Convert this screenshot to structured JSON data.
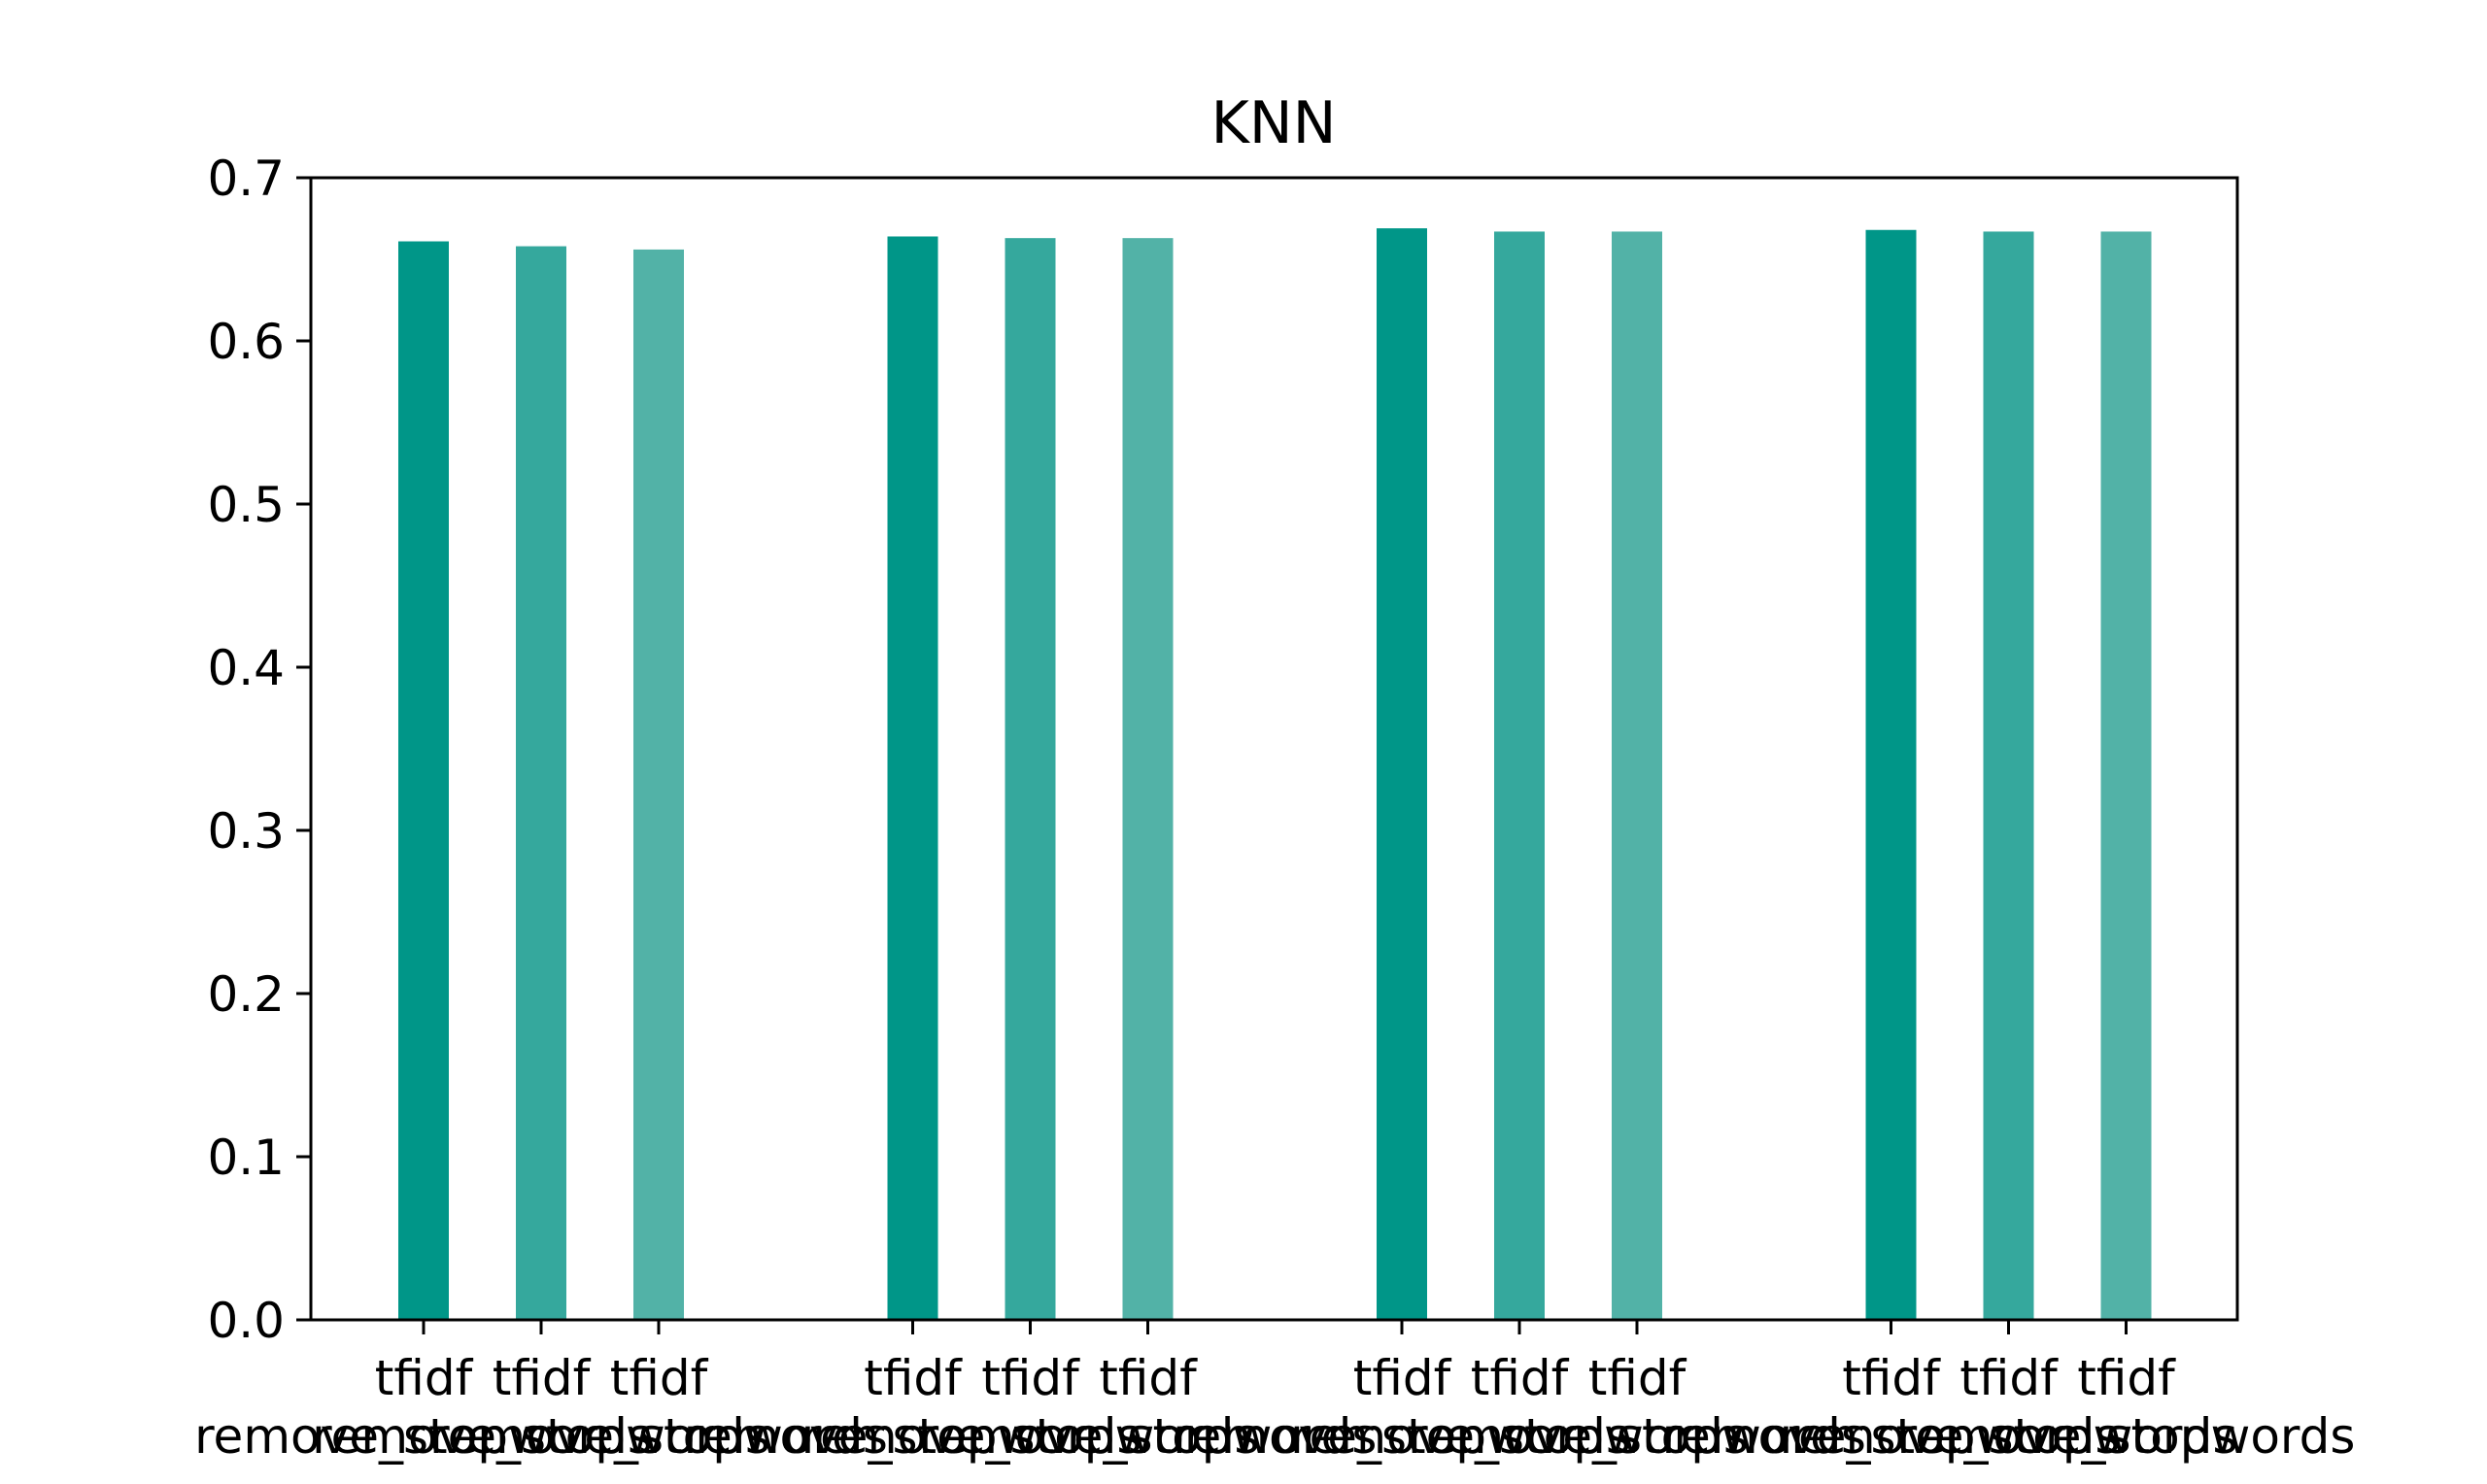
{
  "chart_data": {
    "type": "bar",
    "title": "KNN",
    "xlabel": "",
    "ylabel": "",
    "ylim": [
      0,
      0.7
    ],
    "yticks": [
      "0.0",
      "0.1",
      "0.2",
      "0.3",
      "0.4",
      "0.5",
      "0.6",
      "0.7"
    ],
    "grid": false,
    "legend": "none",
    "groups": [
      {
        "bars": [
          {
            "line1": "tfidf",
            "line2": "remove_stopwords",
            "value": 0.661,
            "color": "#009688"
          },
          {
            "line1": "tfidf",
            "line2": "remove_stopwords",
            "value": 0.658,
            "color": "#35a89d"
          },
          {
            "line1": "tfidf",
            "line2": "remove_stopwords",
            "value": 0.656,
            "color": "#52b2a7"
          }
        ]
      },
      {
        "bars": [
          {
            "line1": "tfidf",
            "line2": "remove_stopwords",
            "value": 0.664,
            "color": "#009688"
          },
          {
            "line1": "tfidf",
            "line2": "remove_stopwords",
            "value": 0.663,
            "color": "#35a89d"
          },
          {
            "line1": "tfidf",
            "line2": "remove_stopwords",
            "value": 0.663,
            "color": "#52b2a7"
          }
        ]
      },
      {
        "bars": [
          {
            "line1": "tfidf",
            "line2": "remove_stopwords",
            "value": 0.669,
            "color": "#009688"
          },
          {
            "line1": "tfidf",
            "line2": "remove_stopwords",
            "value": 0.667,
            "color": "#35a89d"
          },
          {
            "line1": "tfidf",
            "line2": "remove_stopwords",
            "value": 0.667,
            "color": "#52b2a7"
          }
        ]
      },
      {
        "bars": [
          {
            "line1": "tfidf",
            "line2": "remove_stopwords",
            "value": 0.668,
            "color": "#009688"
          },
          {
            "line1": "tfidf",
            "line2": "remove_stopwords",
            "value": 0.667,
            "color": "#35a89d"
          },
          {
            "line1": "tfidf",
            "line2": "remove_stopwords",
            "value": 0.667,
            "color": "#52b2a7"
          }
        ]
      }
    ]
  }
}
